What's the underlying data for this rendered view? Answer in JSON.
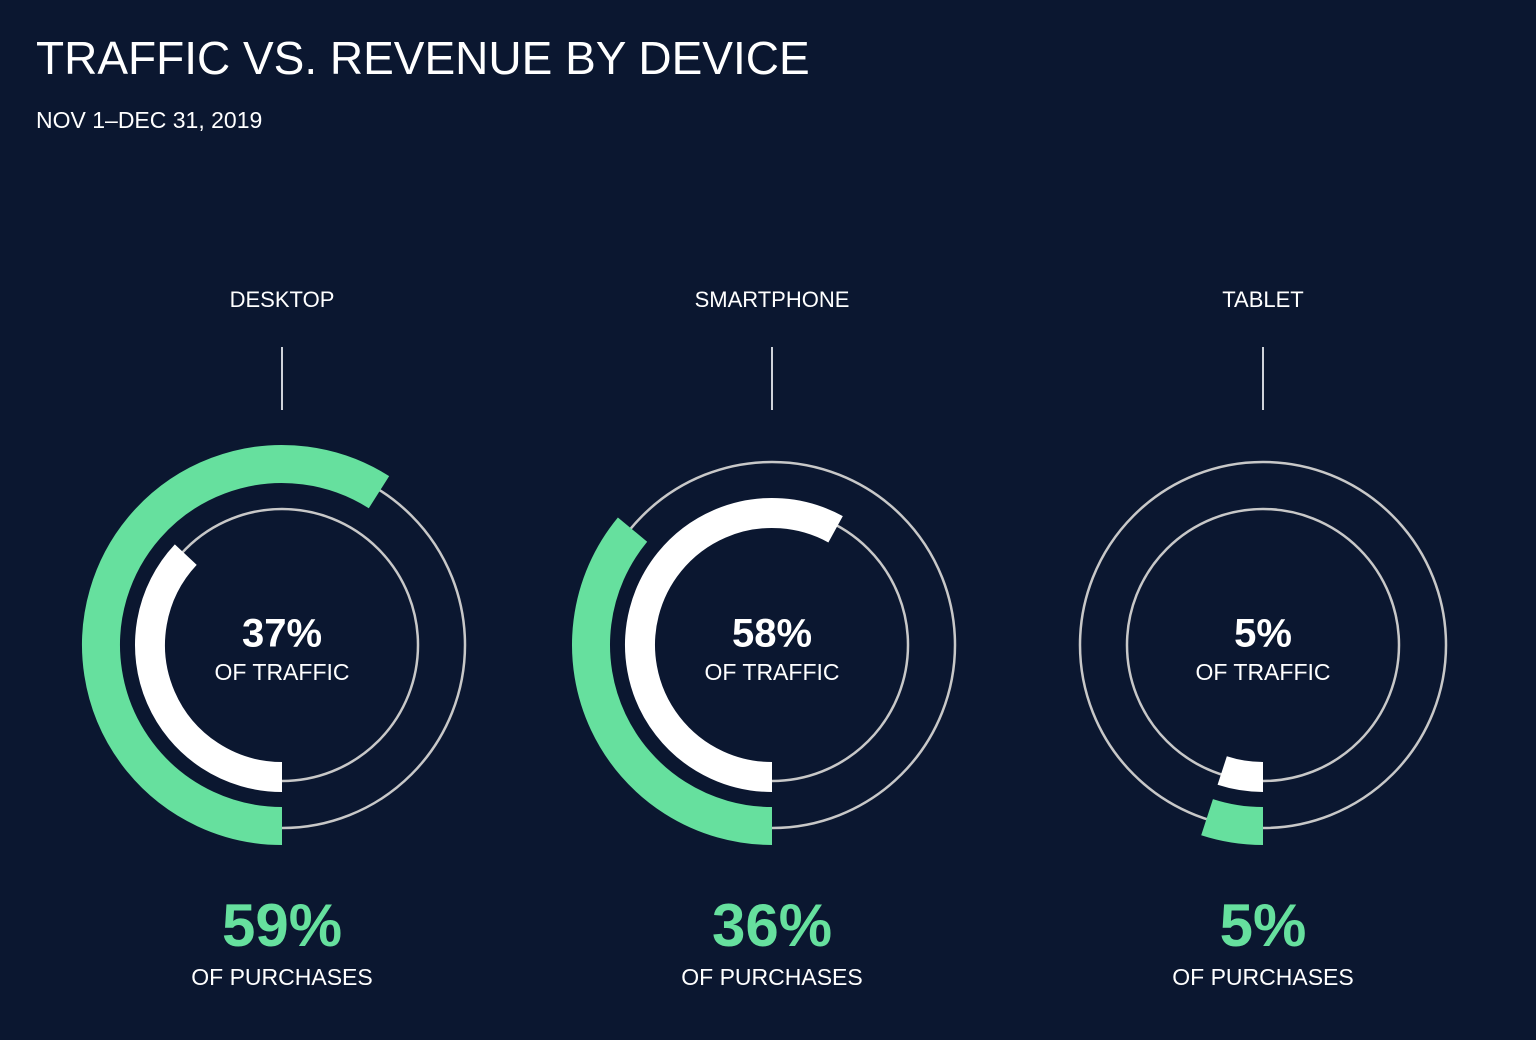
{
  "chart_data": {
    "type": "radial_bar",
    "title": "TRAFFIC VS. REVENUE BY DEVICE",
    "subtitle": "NOV 1–DEC 31, 2019",
    "categories": [
      "DESKTOP",
      "SMARTPHONE",
      "TABLET"
    ],
    "ylim": [
      0,
      100
    ],
    "series": [
      {
        "name": "OF TRAFFIC",
        "color": "#ffffff",
        "values": [
          37,
          58,
          5
        ],
        "value_labels": [
          "37%",
          "58%",
          "5%"
        ]
      },
      {
        "name": "OF PURCHASES",
        "color": "#66e09e",
        "values": [
          59,
          36,
          5
        ],
        "value_labels": [
          "59%",
          "36%",
          "5%"
        ]
      }
    ]
  }
}
